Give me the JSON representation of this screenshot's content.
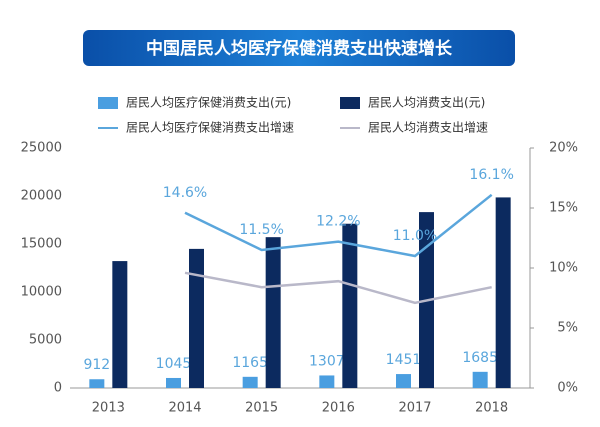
{
  "chart_data": {
    "type": "bar_line",
    "title": "中国居民人均医疗保健消费支出快速增长",
    "categories": [
      "2013",
      "2014",
      "2015",
      "2016",
      "2017",
      "2018"
    ],
    "series": [
      {
        "name": "居民人均医疗保健消费支出(元)",
        "type": "bar",
        "color": "#4a9ee0",
        "values": [
          912,
          1045,
          1165,
          1307,
          1451,
          1685
        ]
      },
      {
        "name": "居民人均消费支出(元)",
        "type": "bar",
        "color": "#0c2a5f",
        "values": [
          13220,
          14491,
          15712,
          17111,
          18322,
          19853
        ]
      },
      {
        "name": "居民人均医疗保健消费支出增速",
        "type": "line",
        "axis": "y2",
        "color": "#5aa6dc",
        "values": [
          null,
          14.6,
          11.5,
          12.2,
          11.0,
          16.1
        ],
        "value_labels": [
          null,
          "14.6%",
          "11.5%",
          "12.2%",
          "11.0%",
          "16.1%"
        ]
      },
      {
        "name": "居民人均消费支出增速",
        "type": "line",
        "axis": "y2",
        "color": "#b9b8c9",
        "values": [
          null,
          9.6,
          8.4,
          8.9,
          7.1,
          8.4
        ]
      }
    ],
    "ylim": [
      0,
      25000
    ],
    "yticks": [
      0,
      5000,
      10000,
      15000,
      20000,
      25000
    ],
    "y2lim": [
      0,
      20
    ],
    "y2ticks": [
      {
        "value": 0,
        "label": "0%"
      },
      {
        "value": 5,
        "label": "5%"
      },
      {
        "value": 10,
        "label": "10%"
      },
      {
        "value": 15,
        "label": "15%"
      },
      {
        "value": 20,
        "label": "20%"
      }
    ]
  }
}
